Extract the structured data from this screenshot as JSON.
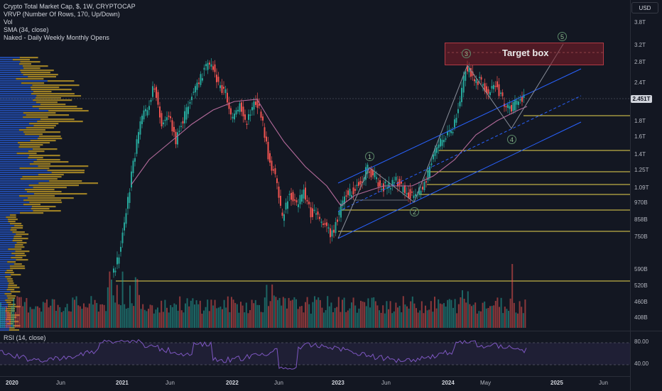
{
  "legend": {
    "symbol": "Crypto Total Market Cap, $, 1W, CRYPTOCAP",
    "indicators": [
      "VRVP (Number Of Rows, 170, Up/Down)",
      "Vol",
      "SMA (34, close)",
      "Naked - Daily Weekly Monthly Opens"
    ],
    "rsi": "RSI (14, close)"
  },
  "currency": "USD",
  "last_price": "2.451T",
  "price_axis": [
    {
      "label": "3.8T",
      "value": 3.8
    },
    {
      "label": "3.2T",
      "value": 3.2
    },
    {
      "label": "2.8T",
      "value": 2.8
    },
    {
      "label": "2.4T",
      "value": 2.4
    },
    {
      "label": "1.8T",
      "value": 1.8
    },
    {
      "label": "1.6T",
      "value": 1.6
    },
    {
      "label": "1.4T",
      "value": 1.4
    },
    {
      "label": "1.25T",
      "value": 1.25
    },
    {
      "label": "1.09T",
      "value": 1.09
    },
    {
      "label": "970B",
      "value": 0.97
    },
    {
      "label": "858B",
      "value": 0.858
    },
    {
      "label": "750B",
      "value": 0.75
    },
    {
      "label": "590B",
      "value": 0.59
    },
    {
      "label": "520B",
      "value": 0.52
    },
    {
      "label": "460B",
      "value": 0.46
    },
    {
      "label": "408B",
      "value": 0.408
    }
  ],
  "rsi_axis": [
    {
      "label": "80.00",
      "value": 80
    },
    {
      "label": "40.00",
      "value": 40
    }
  ],
  "time_axis": [
    {
      "label": "2020",
      "year": true
    },
    {
      "label": "Jun",
      "year": false
    },
    {
      "label": "2021",
      "year": true
    },
    {
      "label": "Jun",
      "year": false
    },
    {
      "label": "2022",
      "year": true
    },
    {
      "label": "Jun",
      "year": false
    },
    {
      "label": "2023",
      "year": true
    },
    {
      "label": "Jun",
      "year": false
    },
    {
      "label": "2024",
      "year": true
    },
    {
      "label": "May",
      "year": false
    },
    {
      "label": "2025",
      "year": true
    },
    {
      "label": "Jun",
      "year": false
    }
  ],
  "annotations": {
    "target_box": "Target box",
    "waves": [
      "1",
      "2",
      "3",
      "4",
      "5"
    ]
  },
  "colors": {
    "up": "#26a69a",
    "down": "#ef5350",
    "sma": "#b36a9a",
    "channel": "#2962ff",
    "levels": "#e8d44d",
    "wave": "#8a8f9a",
    "vp_up": "#2451b8",
    "vp_down": "#c9a227"
  }
}
